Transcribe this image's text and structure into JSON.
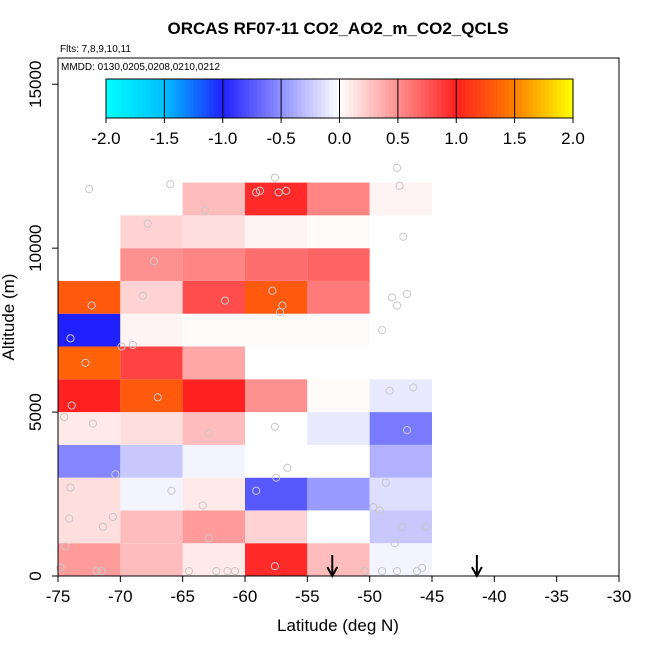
{
  "chart_data": {
    "type": "heatmap",
    "title": "ORCAS RF07-11 CO2_AO2_m_CO2_QCLS",
    "flights_note": "Flts: 7,8,9,10,11",
    "dates_note": "MMDD: 0130,0205,0208,0210,0212",
    "xlabel": "Latitude (deg N)",
    "ylabel": "Altitude (m)",
    "xlim": [
      -75,
      -30
    ],
    "ylim": [
      0,
      15800
    ],
    "x_ticks": [
      -75,
      -70,
      -65,
      -60,
      -55,
      -50,
      -45,
      -40,
      -35,
      -30
    ],
    "x_tick_labels": [
      "-75",
      "-70",
      "-65",
      "-60",
      "-55",
      "-50",
      "-45",
      "-40",
      "-35",
      "-30"
    ],
    "y_ticks": [
      0,
      5000,
      10000,
      15000
    ],
    "y_tick_labels": [
      "0",
      "5000",
      "10000",
      "15000"
    ],
    "colorbar": {
      "min": -2.0,
      "max": 2.0,
      "ticks": [
        -2.0,
        -1.5,
        -1.0,
        -0.5,
        0.0,
        0.5,
        1.0,
        1.5,
        2.0
      ],
      "tick_labels": [
        "-2.0",
        "-1.5",
        "-1.0",
        "-0.5",
        "0.0",
        "0.5",
        "1.0",
        "1.5",
        "2.0"
      ],
      "stops": [
        {
          "v": -2.0,
          "color": "#00ffff"
        },
        {
          "v": -1.5,
          "color": "#00bfff"
        },
        {
          "v": -1.0,
          "color": "#2020ff"
        },
        {
          "v": -0.5,
          "color": "#9090ff"
        },
        {
          "v": 0.0,
          "color": "#ffffff"
        },
        {
          "v": 0.5,
          "color": "#ff9090"
        },
        {
          "v": 1.0,
          "color": "#ff2020"
        },
        {
          "v": 1.5,
          "color": "#ff7f00"
        },
        {
          "v": 2.0,
          "color": "#ffff00"
        }
      ]
    },
    "cell_width_deg": 5,
    "cell_height_m": 1000,
    "cells": [
      {
        "lon": -75,
        "alt": 0,
        "v": 0.45
      },
      {
        "lon": -70,
        "alt": 0,
        "v": 0.3
      },
      {
        "lon": -65,
        "alt": 0,
        "v": 0.1
      },
      {
        "lon": -60,
        "alt": 0,
        "v": 0.95
      },
      {
        "lon": -55,
        "alt": 0,
        "v": 0.3
      },
      {
        "lon": -50,
        "alt": 0,
        "v": -0.05
      },
      {
        "lon": -75,
        "alt": 1000,
        "v": 0.15
      },
      {
        "lon": -70,
        "alt": 1000,
        "v": 0.3
      },
      {
        "lon": -65,
        "alt": 1000,
        "v": 0.45
      },
      {
        "lon": -60,
        "alt": 1000,
        "v": 0.2
      },
      {
        "lon": -55,
        "alt": 1000,
        "v": 0.0
      },
      {
        "lon": -50,
        "alt": 1000,
        "v": -0.25
      },
      {
        "lon": -75,
        "alt": 2000,
        "v": 0.15
      },
      {
        "lon": -70,
        "alt": 2000,
        "v": -0.05
      },
      {
        "lon": -65,
        "alt": 2000,
        "v": 0.1
      },
      {
        "lon": -60,
        "alt": 2000,
        "v": -0.75
      },
      {
        "lon": -55,
        "alt": 2000,
        "v": -0.45
      },
      {
        "lon": -50,
        "alt": 2000,
        "v": -0.15
      },
      {
        "lon": -75,
        "alt": 3000,
        "v": -0.55
      },
      {
        "lon": -70,
        "alt": 3000,
        "v": -0.25
      },
      {
        "lon": -65,
        "alt": 3000,
        "v": -0.05
      },
      {
        "lon": -60,
        "alt": 3000,
        "v": 0.0
      },
      {
        "lon": -55,
        "alt": 3000,
        "v": 0.0
      },
      {
        "lon": -50,
        "alt": 3000,
        "v": -0.35
      },
      {
        "lon": -75,
        "alt": 4000,
        "v": 0.1
      },
      {
        "lon": -70,
        "alt": 4000,
        "v": 0.15
      },
      {
        "lon": -65,
        "alt": 4000,
        "v": 0.3
      },
      {
        "lon": -60,
        "alt": 4000,
        "v": 0.0
      },
      {
        "lon": -55,
        "alt": 4000,
        "v": -0.1
      },
      {
        "lon": -50,
        "alt": 4000,
        "v": -0.6
      },
      {
        "lon": -75,
        "alt": 5000,
        "v": 1.0
      },
      {
        "lon": -70,
        "alt": 5000,
        "v": 1.3
      },
      {
        "lon": -65,
        "alt": 5000,
        "v": 1.0
      },
      {
        "lon": -60,
        "alt": 5000,
        "v": 0.5
      },
      {
        "lon": -55,
        "alt": 5000,
        "v": 0.02
      },
      {
        "lon": -50,
        "alt": 5000,
        "v": -0.1
      },
      {
        "lon": -75,
        "alt": 6000,
        "v": 1.35
      },
      {
        "lon": -70,
        "alt": 6000,
        "v": 0.85
      },
      {
        "lon": -65,
        "alt": 6000,
        "v": 0.4
      },
      {
        "lon": -75,
        "alt": 7000,
        "v": -1.0
      },
      {
        "lon": -70,
        "alt": 7000,
        "v": 0.05
      },
      {
        "lon": -65,
        "alt": 7000,
        "v": 0.02
      },
      {
        "lon": -60,
        "alt": 7000,
        "v": 0.02
      },
      {
        "lon": -55,
        "alt": 7000,
        "v": 0.02
      },
      {
        "lon": -75,
        "alt": 8000,
        "v": 1.3
      },
      {
        "lon": -70,
        "alt": 8000,
        "v": 0.2
      },
      {
        "lon": -65,
        "alt": 8000,
        "v": 0.8
      },
      {
        "lon": -60,
        "alt": 8000,
        "v": 1.3
      },
      {
        "lon": -55,
        "alt": 8000,
        "v": 0.6
      },
      {
        "lon": -70,
        "alt": 9000,
        "v": 0.5
      },
      {
        "lon": -65,
        "alt": 9000,
        "v": 0.55
      },
      {
        "lon": -60,
        "alt": 9000,
        "v": 0.65
      },
      {
        "lon": -55,
        "alt": 9000,
        "v": 0.7
      },
      {
        "lon": -70,
        "alt": 10000,
        "v": 0.2
      },
      {
        "lon": -65,
        "alt": 10000,
        "v": 0.15
      },
      {
        "lon": -60,
        "alt": 10000,
        "v": 0.05
      },
      {
        "lon": -55,
        "alt": 10000,
        "v": 0.02
      },
      {
        "lon": -65,
        "alt": 11000,
        "v": 0.3
      },
      {
        "lon": -60,
        "alt": 11000,
        "v": 0.95
      },
      {
        "lon": -55,
        "alt": 11000,
        "v": 0.55
      },
      {
        "lon": -50,
        "alt": 11000,
        "v": 0.05
      }
    ],
    "sample_points": [
      {
        "lat": -72.5,
        "alt": 11800
      },
      {
        "lat": -66.0,
        "alt": 11950
      },
      {
        "lat": -63.2,
        "alt": 11150
      },
      {
        "lat": -59.1,
        "alt": 11700
      },
      {
        "lat": -58.8,
        "alt": 11750
      },
      {
        "lat": -57.6,
        "alt": 12150
      },
      {
        "lat": -57.3,
        "alt": 11700
      },
      {
        "lat": -56.7,
        "alt": 11750
      },
      {
        "lat": -47.8,
        "alt": 12450
      },
      {
        "lat": -47.6,
        "alt": 11900
      },
      {
        "lat": -67.8,
        "alt": 10750
      },
      {
        "lat": -47.3,
        "alt": 10350
      },
      {
        "lat": -67.3,
        "alt": 9600
      },
      {
        "lat": -48.2,
        "alt": 8500
      },
      {
        "lat": -47.8,
        "alt": 8250
      },
      {
        "lat": -47.0,
        "alt": 8600
      },
      {
        "lat": -72.3,
        "alt": 8250
      },
      {
        "lat": -68.2,
        "alt": 8550
      },
      {
        "lat": -61.6,
        "alt": 8400
      },
      {
        "lat": -57.8,
        "alt": 8700
      },
      {
        "lat": -57.2,
        "alt": 8050
      },
      {
        "lat": -57.0,
        "alt": 8250
      },
      {
        "lat": -49.0,
        "alt": 7500
      },
      {
        "lat": -74.0,
        "alt": 7250
      },
      {
        "lat": -69.9,
        "alt": 7000
      },
      {
        "lat": -69.0,
        "alt": 7050
      },
      {
        "lat": -72.8,
        "alt": 6500
      },
      {
        "lat": -73.9,
        "alt": 5200
      },
      {
        "lat": -67.0,
        "alt": 5450
      },
      {
        "lat": -48.4,
        "alt": 5650
      },
      {
        "lat": -46.5,
        "alt": 5750
      },
      {
        "lat": -74.5,
        "alt": 4850
      },
      {
        "lat": -72.2,
        "alt": 4650
      },
      {
        "lat": -62.9,
        "alt": 4350
      },
      {
        "lat": -57.6,
        "alt": 4550
      },
      {
        "lat": -47.0,
        "alt": 4450
      },
      {
        "lat": -70.4,
        "alt": 3100
      },
      {
        "lat": -56.6,
        "alt": 3300
      },
      {
        "lat": -57.5,
        "alt": 3000
      },
      {
        "lat": -65.9,
        "alt": 2600
      },
      {
        "lat": -59.1,
        "alt": 2600
      },
      {
        "lat": -74.0,
        "alt": 2700
      },
      {
        "lat": -48.7,
        "alt": 2850
      },
      {
        "lat": -63.4,
        "alt": 2150
      },
      {
        "lat": -49.7,
        "alt": 2100
      },
      {
        "lat": -49.2,
        "alt": 2000
      },
      {
        "lat": -74.1,
        "alt": 1750
      },
      {
        "lat": -70.6,
        "alt": 1800
      },
      {
        "lat": -71.4,
        "alt": 1500
      },
      {
        "lat": -62.9,
        "alt": 1150
      },
      {
        "lat": -47.4,
        "alt": 1500
      },
      {
        "lat": -45.5,
        "alt": 1500
      },
      {
        "lat": -48.0,
        "alt": 1000
      },
      {
        "lat": -74.4,
        "alt": 900
      },
      {
        "lat": -74.8,
        "alt": 250
      },
      {
        "lat": -71.9,
        "alt": 150
      },
      {
        "lat": -71.5,
        "alt": 150
      },
      {
        "lat": -64.5,
        "alt": 150
      },
      {
        "lat": -62.3,
        "alt": 150
      },
      {
        "lat": -61.4,
        "alt": 150
      },
      {
        "lat": -60.8,
        "alt": 150
      },
      {
        "lat": -57.6,
        "alt": 300
      },
      {
        "lat": -50.4,
        "alt": 150
      },
      {
        "lat": -49.0,
        "alt": 150
      },
      {
        "lat": -47.8,
        "alt": 150
      },
      {
        "lat": -46.2,
        "alt": 150
      },
      {
        "lat": -45.8,
        "alt": 250
      }
    ],
    "arrow_markers": [
      {
        "lat": -53.0
      },
      {
        "lat": -41.4
      }
    ]
  }
}
